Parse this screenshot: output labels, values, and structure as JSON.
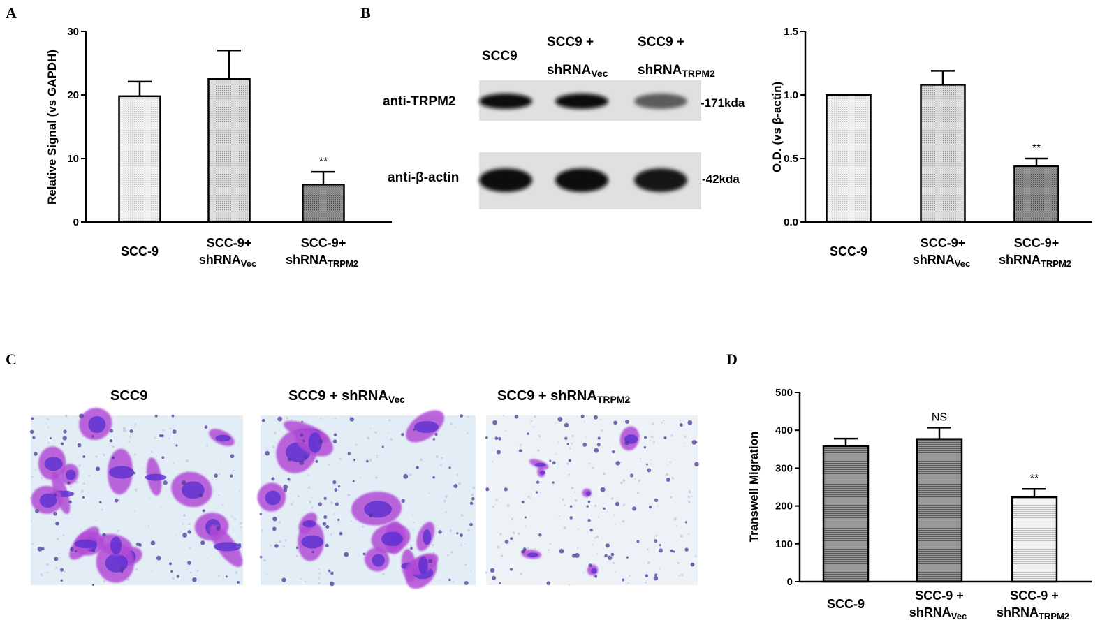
{
  "panels": {
    "a": "A",
    "b": "B",
    "c": "C",
    "d": "D"
  },
  "chart_data": [
    {
      "panel": "A",
      "type": "bar",
      "ylabel": "Relative Signal (vs GAPDH)",
      "ylim": [
        0,
        30
      ],
      "yticks": [
        0,
        10,
        20,
        30
      ],
      "categories": [
        {
          "main": "SCC-9",
          "main2": "",
          "sub": ""
        },
        {
          "main": "SCC-9+",
          "main2": "shRNA",
          "sub": "Vec"
        },
        {
          "main": "SCC-9+",
          "main2": "shRNA",
          "sub": "TRPM2"
        }
      ],
      "values": [
        19.8,
        22.5,
        5.9
      ],
      "errors": [
        2.3,
        4.5,
        2.0
      ],
      "annotations": [
        "",
        "",
        "**"
      ],
      "fills": [
        "#e6e6e6",
        "#d4d4d4",
        "#7a7a7a"
      ]
    },
    {
      "panel": "B",
      "type": "bar",
      "ylabel": "O.D. (vs β-actin)",
      "ylim": [
        0,
        1.5
      ],
      "yticks": [
        "0.0",
        "0.5",
        "1.0",
        "1.5"
      ],
      "categories": [
        {
          "main": "SCC-9",
          "main2": "",
          "sub": ""
        },
        {
          "main": "SCC-9+",
          "main2": "shRNA",
          "sub": "Vec"
        },
        {
          "main": "SCC-9+",
          "main2": "shRNA",
          "sub": "TRPM2"
        }
      ],
      "values": [
        1.0,
        1.08,
        0.44
      ],
      "errors": [
        0,
        0.11,
        0.06
      ],
      "annotations": [
        "",
        "",
        "**"
      ],
      "fills": [
        "#e6e6e6",
        "#d4d4d4",
        "#7a7a7a"
      ]
    },
    {
      "panel": "D",
      "type": "bar",
      "ylabel": "Transwell Migration",
      "ylim": [
        0,
        500
      ],
      "yticks": [
        0,
        100,
        200,
        300,
        400,
        500
      ],
      "categories": [
        {
          "main": "SCC-9",
          "main2": "",
          "sub": ""
        },
        {
          "main": "SCC-9 +",
          "main2": "shRNA",
          "sub": "Vec"
        },
        {
          "main": "SCC-9 +",
          "main2": "shRNA",
          "sub": "TRPM2"
        }
      ],
      "values": [
        358,
        377,
        223
      ],
      "errors": [
        20,
        30,
        22
      ],
      "annotations": [
        "",
        "NS",
        "**"
      ],
      "fills": [
        "#8a8a8a",
        "#8a8a8a",
        "#e2e2e2"
      ]
    }
  ],
  "western_blot": {
    "lanes": [
      {
        "line1": "SCC9",
        "line2": "",
        "sub": ""
      },
      {
        "line1": "SCC9 +",
        "line2": "shRNA",
        "sub": "Vec"
      },
      {
        "line1": "SCC9 +",
        "line2": "shRNA",
        "sub": "TRPM2"
      }
    ],
    "rows": [
      {
        "label": "anti-TRPM2",
        "marker": "-171kda",
        "intensity": [
          1.0,
          1.0,
          0.55
        ]
      },
      {
        "label": "anti-β-actin",
        "marker": "-42kda",
        "intensity": [
          1.0,
          1.0,
          0.95
        ]
      }
    ]
  },
  "micrographs": [
    {
      "main": "SCC9",
      "sub": "",
      "density": "high"
    },
    {
      "main": "SCC9 + shRNA",
      "sub": "Vec",
      "density": "high"
    },
    {
      "main": "SCC9 + shRNA",
      "sub": "TRPM2",
      "density": "low"
    }
  ]
}
